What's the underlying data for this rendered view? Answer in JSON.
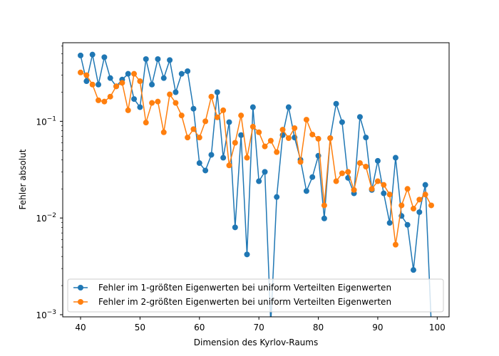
{
  "chart_data": {
    "type": "line",
    "title": "",
    "xlabel": "Dimension des Kyrlov-Raums",
    "ylabel": "Fehler absolut",
    "xlim": [
      37,
      102
    ],
    "ylim": [
      0.00095,
      0.65
    ],
    "yscale": "log",
    "x_ticks": [
      40,
      50,
      60,
      70,
      80,
      90,
      100
    ],
    "y_ticks": [
      {
        "value": 0.001,
        "base": "10",
        "exp": "−3"
      },
      {
        "value": 0.01,
        "base": "10",
        "exp": "−2"
      },
      {
        "value": 0.1,
        "base": "10",
        "exp": "−1"
      }
    ],
    "grid": false,
    "legend_position": "lower-right",
    "series": [
      {
        "name": "Fehler im 1-größten Eigenwerten bei uniform Verteilten Eigenwerten",
        "color": "#1f77b4",
        "x": [
          40,
          41,
          42,
          43,
          44,
          45,
          46,
          47,
          48,
          49,
          50,
          51,
          52,
          53,
          54,
          55,
          56,
          57,
          58,
          59,
          60,
          61,
          62,
          63,
          64,
          65,
          66,
          67,
          68,
          69,
          70,
          71,
          72,
          73,
          74,
          75,
          76,
          77,
          78,
          79,
          80,
          81,
          82,
          83,
          84,
          85,
          86,
          87,
          88,
          89,
          90,
          91,
          92,
          93,
          94,
          95,
          96,
          97,
          98,
          99
        ],
        "y": [
          0.48,
          0.26,
          0.49,
          0.24,
          0.46,
          0.28,
          0.23,
          0.27,
          0.31,
          0.17,
          0.14,
          0.44,
          0.24,
          0.44,
          0.28,
          0.43,
          0.2,
          0.31,
          0.33,
          0.135,
          0.037,
          0.031,
          0.045,
          0.2,
          0.042,
          0.098,
          0.008,
          0.072,
          0.0042,
          0.14,
          0.024,
          0.03,
          0.0008,
          0.0165,
          0.072,
          0.14,
          0.068,
          0.04,
          0.019,
          0.0265,
          0.044,
          0.0099,
          0.067,
          0.152,
          0.098,
          0.026,
          0.018,
          0.111,
          0.068,
          0.0195,
          0.039,
          0.018,
          0.0089,
          0.042,
          0.0105,
          0.0085,
          0.0029,
          0.0115,
          0.022,
          0.0008
        ]
      },
      {
        "name": "Fehler im 2-größten Eigenwerten bei uniform Verteilten Eigenwerten",
        "color": "#ff7f0e",
        "x": [
          40,
          41,
          42,
          43,
          44,
          45,
          46,
          47,
          48,
          49,
          50,
          51,
          52,
          53,
          54,
          55,
          56,
          57,
          58,
          59,
          60,
          61,
          62,
          63,
          64,
          65,
          66,
          67,
          68,
          69,
          70,
          71,
          72,
          73,
          74,
          75,
          76,
          77,
          78,
          79,
          80,
          81,
          82,
          83,
          84,
          85,
          86,
          87,
          88,
          89,
          90,
          91,
          92,
          93,
          94,
          95,
          96,
          97,
          98,
          99
        ],
        "y": [
          0.32,
          0.3,
          0.24,
          0.165,
          0.16,
          0.18,
          0.23,
          0.25,
          0.13,
          0.31,
          0.26,
          0.097,
          0.155,
          0.16,
          0.077,
          0.19,
          0.155,
          0.115,
          0.068,
          0.083,
          0.068,
          0.1,
          0.18,
          0.11,
          0.13,
          0.035,
          0.06,
          0.115,
          0.042,
          0.088,
          0.077,
          0.055,
          0.063,
          0.048,
          0.082,
          0.067,
          0.085,
          0.038,
          0.104,
          0.073,
          0.066,
          0.0135,
          0.067,
          0.024,
          0.029,
          0.03,
          0.0195,
          0.037,
          0.034,
          0.02,
          0.024,
          0.022,
          0.0175,
          0.0053,
          0.0135,
          0.02,
          0.0125,
          0.0155,
          0.0175,
          0.0135
        ]
      }
    ]
  }
}
